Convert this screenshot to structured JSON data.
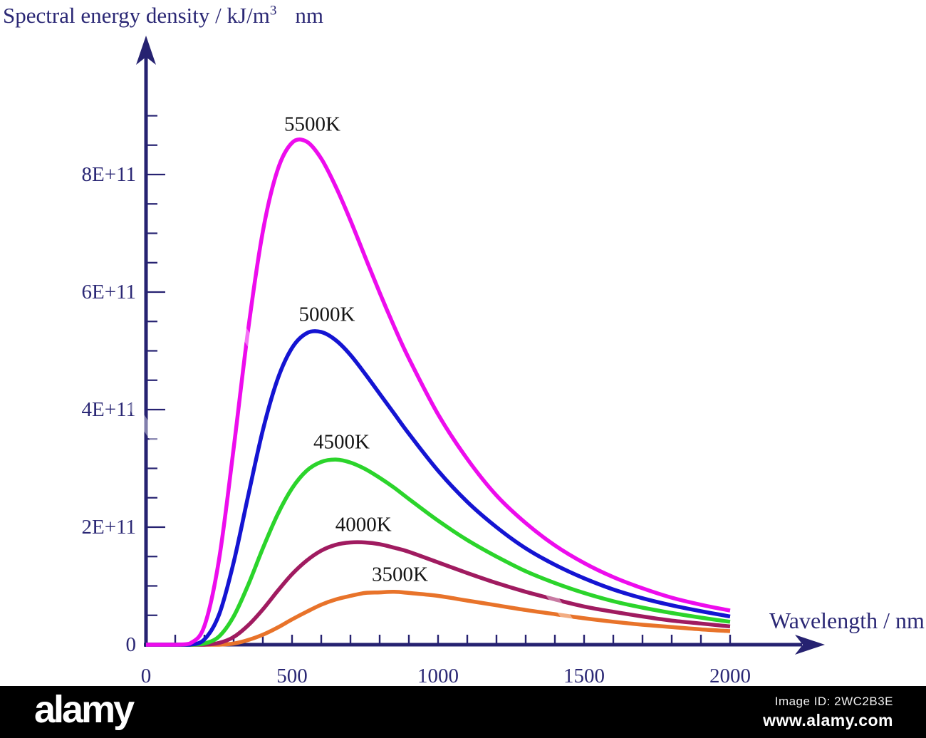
{
  "chart_data": {
    "type": "line",
    "title_main": "Spectral energy density / kJ/m",
    "title_sup": "3",
    "title_unit_suffix": "nm",
    "ylabel": "Spectral energy density / kJ/m3 nm",
    "xlabel": "Wavelength / nm",
    "axis_color": "#262271",
    "tick_label_color": "#2b2875",
    "series_label_color": "#151515",
    "grid": "off",
    "legend": "inline-labels-above-peaks",
    "x_axis": {
      "min": 0,
      "max": 2000,
      "minor_tick_step": 100,
      "labeled_ticks": [
        {
          "value": 0,
          "label": "0"
        },
        {
          "value": 500,
          "label": "500"
        },
        {
          "value": 1000,
          "label": "1000"
        },
        {
          "value": 1500,
          "label": "1500"
        },
        {
          "value": 2000,
          "label": "2000"
        }
      ]
    },
    "y_axis": {
      "min": 0,
      "max_e11": 9,
      "minor_tick_step_e11": 0.5,
      "labeled_ticks": [
        {
          "value_e11": 0,
          "label": "0"
        },
        {
          "value_e11": 2,
          "label": "2E+11"
        },
        {
          "value_e11": 4,
          "label": "4E+11"
        },
        {
          "value_e11": 6,
          "label": "6E+11"
        },
        {
          "value_e11": 8,
          "label": "8E+11"
        }
      ]
    },
    "x_samples_nm": [
      0,
      100,
      150,
      200,
      250,
      300,
      350,
      400,
      450,
      500,
      550,
      600,
      650,
      700,
      750,
      800,
      850,
      900,
      1000,
      1100,
      1200,
      1300,
      1400,
      1500,
      1600,
      1700,
      1800,
      1900,
      2000
    ],
    "series": [
      {
        "name": "3500K",
        "color": "#e8732a",
        "values_e11": [
          0,
          0,
          0,
          0,
          0,
          0.02,
          0.08,
          0.17,
          0.29,
          0.43,
          0.56,
          0.68,
          0.77,
          0.83,
          0.88,
          0.89,
          0.9,
          0.88,
          0.83,
          0.75,
          0.67,
          0.59,
          0.52,
          0.45,
          0.39,
          0.34,
          0.3,
          0.26,
          0.23
        ]
      },
      {
        "name": "4000K",
        "color": "#a01b60",
        "values_e11": [
          0,
          0,
          0,
          0,
          0.03,
          0.13,
          0.33,
          0.6,
          0.91,
          1.2,
          1.43,
          1.6,
          1.7,
          1.74,
          1.74,
          1.71,
          1.65,
          1.58,
          1.4,
          1.22,
          1.05,
          0.9,
          0.77,
          0.65,
          0.56,
          0.48,
          0.41,
          0.36,
          0.31
        ]
      },
      {
        "name": "4500K",
        "color": "#2bd42b",
        "values_e11": [
          0,
          0,
          0,
          0.02,
          0.14,
          0.48,
          1.02,
          1.64,
          2.21,
          2.66,
          2.96,
          3.11,
          3.15,
          3.1,
          2.99,
          2.84,
          2.67,
          2.48,
          2.11,
          1.78,
          1.5,
          1.25,
          1.05,
          0.88,
          0.74,
          0.63,
          0.54,
          0.46,
          0.39
        ]
      },
      {
        "name": "5000K",
        "color": "#1414d2",
        "values_e11": [
          0,
          0,
          0,
          0.09,
          0.51,
          1.4,
          2.54,
          3.65,
          4.51,
          5.05,
          5.3,
          5.32,
          5.18,
          4.93,
          4.61,
          4.27,
          3.93,
          3.59,
          2.96,
          2.43,
          2.0,
          1.64,
          1.36,
          1.13,
          0.94,
          0.79,
          0.67,
          0.57,
          0.48
        ]
      },
      {
        "name": "5500K",
        "color": "#ed0ced",
        "values_e11": [
          0,
          0,
          0.02,
          0.32,
          1.45,
          3.34,
          5.37,
          7.03,
          8.07,
          8.54,
          8.56,
          8.27,
          7.79,
          7.22,
          6.6,
          5.99,
          5.41,
          4.87,
          3.92,
          3.16,
          2.54,
          2.07,
          1.69,
          1.39,
          1.15,
          0.96,
          0.8,
          0.68,
          0.58
        ]
      }
    ]
  },
  "watermark_bar": {
    "logo": "alamy",
    "image_id": "Image ID: 2WC2B3E",
    "site": "www.alamy.com"
  }
}
